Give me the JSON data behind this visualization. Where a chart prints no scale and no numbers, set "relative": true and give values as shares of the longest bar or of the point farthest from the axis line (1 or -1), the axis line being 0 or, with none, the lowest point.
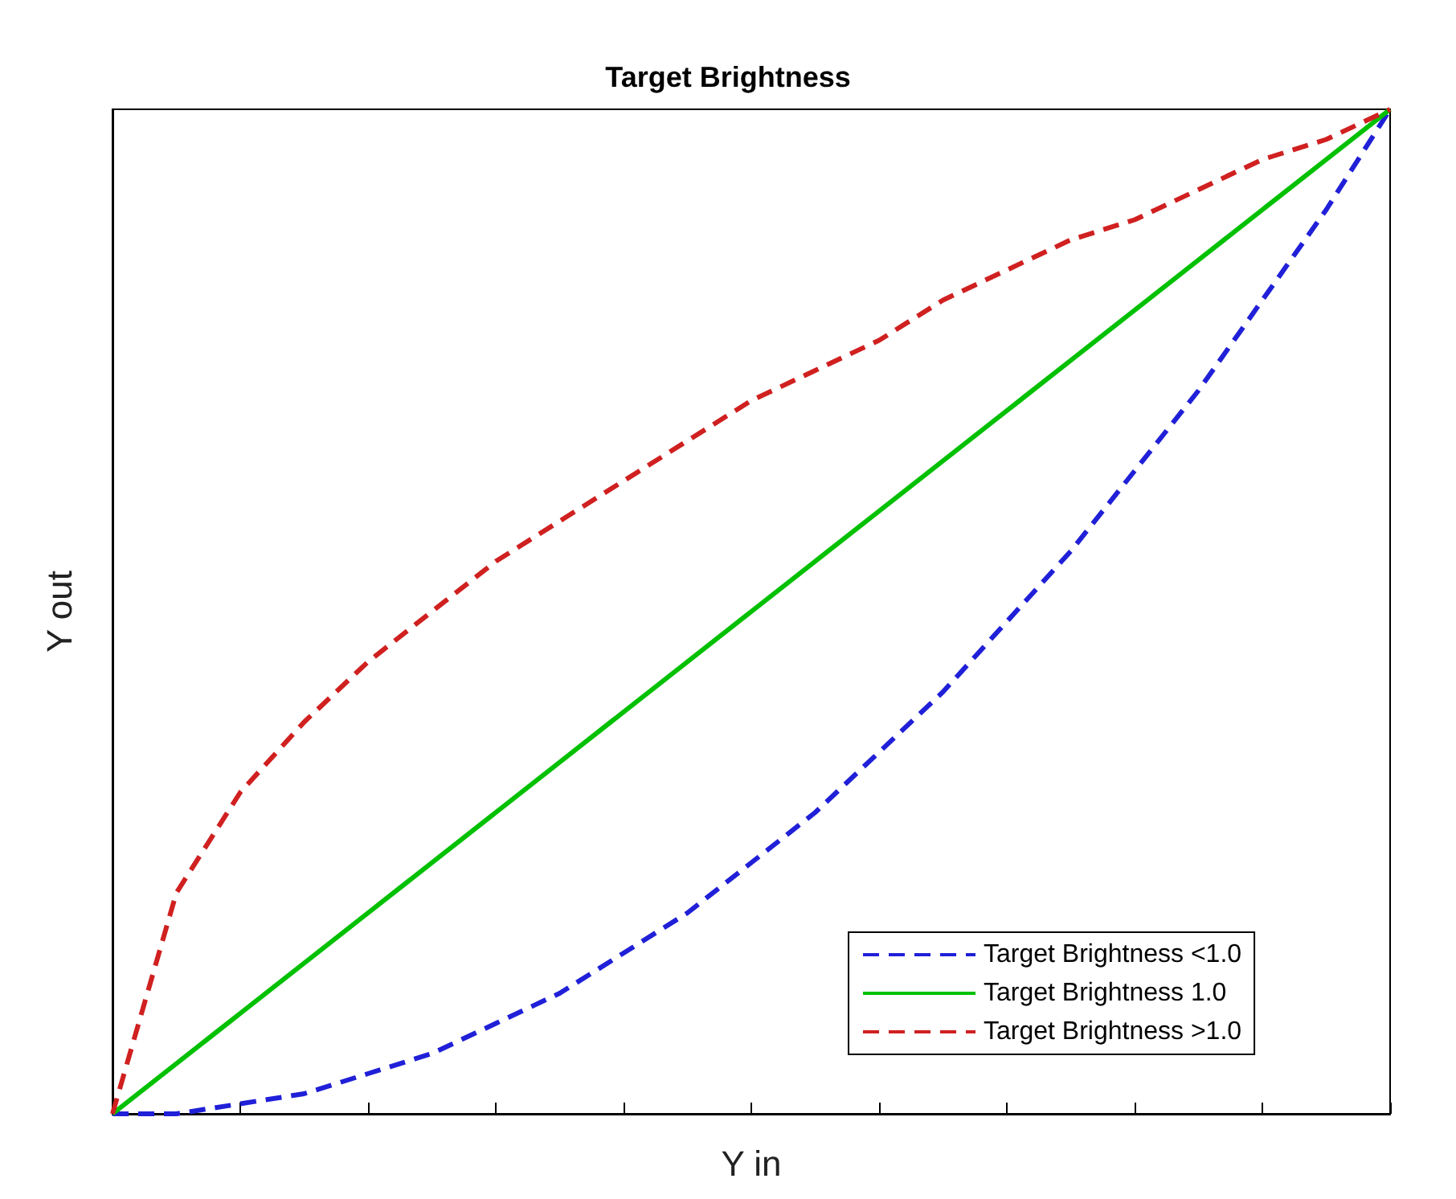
{
  "chart_data": {
    "type": "line",
    "title": "Target Brightness",
    "xlabel": "Y in",
    "ylabel": "Y out",
    "relative": true,
    "legend": "bottom right",
    "marker": "none",
    "grid": false,
    "categories": [
      null,
      null,
      null,
      null,
      null,
      null,
      null,
      null,
      null,
      null,
      null,
      null,
      null,
      null,
      null,
      null,
      null,
      null,
      null,
      null,
      null
    ],
    "series": [
      {
        "name": "Target Brightness <1.0",
        "color": "#2020d8",
        "line_style": "dashed",
        "values": [
          0,
          0,
          0.01,
          0.02,
          0.04,
          0.06,
          0.09,
          0.12,
          0.16,
          0.2,
          0.25,
          0.3,
          0.36,
          0.42,
          0.49,
          0.56,
          0.64,
          0.72,
          0.81,
          0.9,
          1
        ]
      },
      {
        "name": "Target Brightness 1.0",
        "color": "#00c000",
        "line_style": "solid",
        "values": [
          0,
          0.05,
          0.1,
          0.15,
          0.2,
          0.25,
          0.3,
          0.35,
          0.4,
          0.45,
          0.5,
          0.55,
          0.6,
          0.65,
          0.7,
          0.75,
          0.8,
          0.85,
          0.9,
          0.95,
          1
        ]
      },
      {
        "name": "Target Brightness >1.0",
        "color": "#d02020",
        "line_style": "dashed",
        "values": [
          0,
          0.22,
          0.32,
          0.39,
          0.45,
          0.5,
          0.55,
          0.59,
          0.63,
          0.67,
          0.71,
          0.74,
          0.77,
          0.81,
          0.84,
          0.87,
          0.89,
          0.92,
          0.95,
          0.97,
          1
        ]
      }
    ]
  }
}
